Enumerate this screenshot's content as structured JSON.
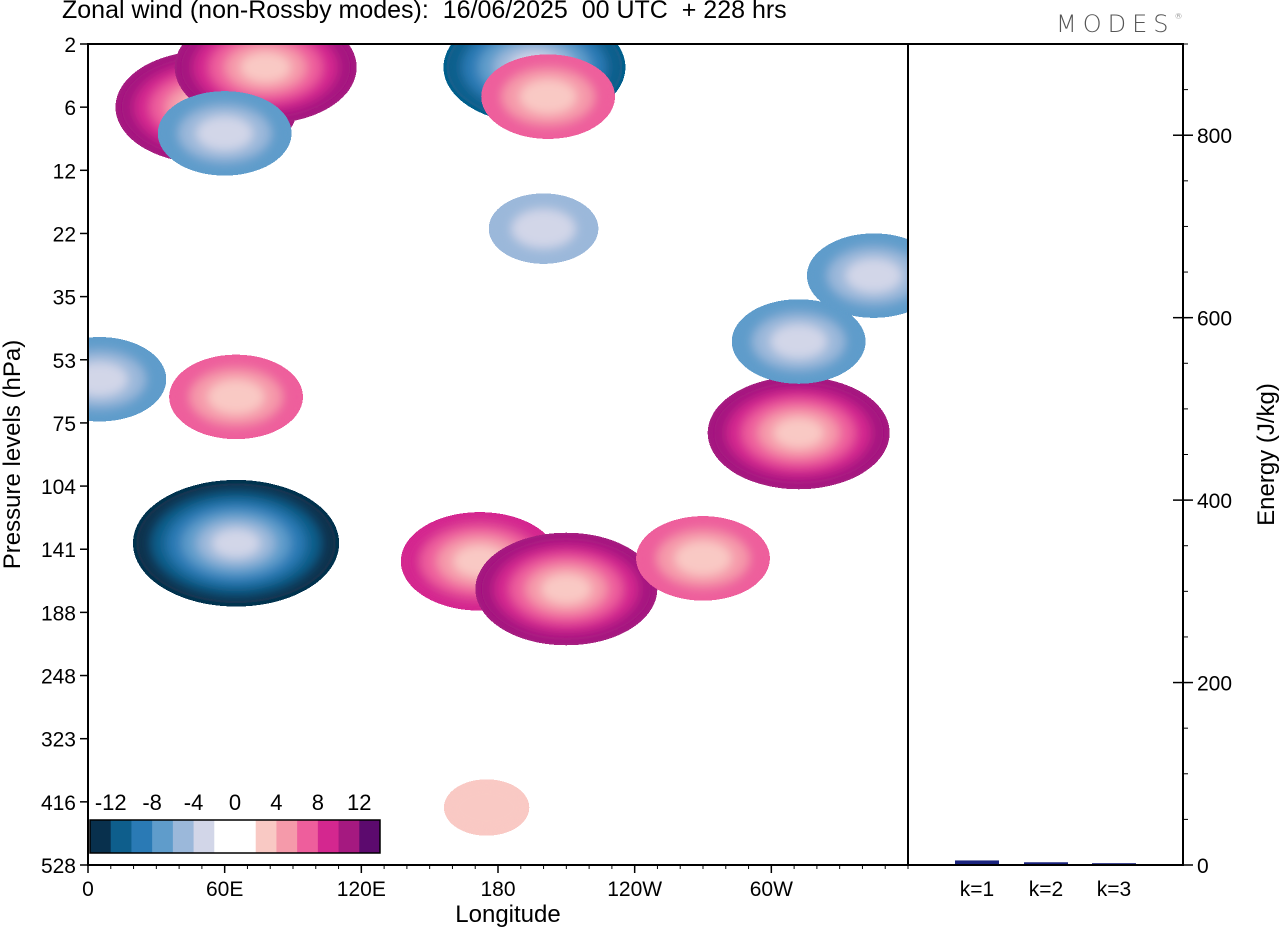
{
  "title": "Zonal wind (non-Rossby modes):  16/06/2025  00 UTC  + 228 hrs",
  "logo": "MODES",
  "colors": {
    "negative": [
      "#08304d",
      "#0e5e8c",
      "#2a7ab5",
      "#5f9ccb",
      "#9bb8da",
      "#d2d6e8"
    ],
    "positive": [
      "#f9c9c4",
      "#f59aaa",
      "#ee5e9c",
      "#d4278f",
      "#a51980",
      "#5c0a6e"
    ],
    "energy_bar": "#1a237e"
  },
  "chart_data": [
    {
      "type": "heatmap",
      "title": "Zonal wind (non-Rossby modes):  16/06/2025  00 UTC  + 228 hrs",
      "xlabel": "Longitude",
      "ylabel": "Pressure levels (hPa)",
      "x_ticks": [
        "0",
        "60E",
        "120E",
        "180",
        "120W",
        "60W"
      ],
      "x_tick_values": [
        0,
        60,
        120,
        180,
        240,
        300
      ],
      "xlim": [
        0,
        360
      ],
      "y_ticks": [
        "2",
        "6",
        "12",
        "22",
        "35",
        "53",
        "75",
        "104",
        "141",
        "188",
        "248",
        "323",
        "416",
        "528"
      ],
      "colorbar": {
        "labels": [
          "-12",
          "-8",
          "-4",
          "0",
          "4",
          "8",
          "12"
        ],
        "levels": [
          -12,
          -10,
          -8,
          -6,
          -4,
          -2,
          0,
          2,
          4,
          6,
          8,
          10,
          12
        ]
      },
      "features": [
        {
          "lon": 52,
          "level": 6,
          "value": 10
        },
        {
          "lon": 78,
          "level": 3,
          "value": 9
        },
        {
          "lon": 196,
          "level": 3,
          "value": -9
        },
        {
          "lon": 202,
          "level": 5,
          "value": 6
        },
        {
          "lon": 60,
          "level": 8,
          "value": -6
        },
        {
          "lon": 5,
          "level": 59,
          "value": -5
        },
        {
          "lon": 65,
          "level": 65,
          "value": 6
        },
        {
          "lon": 65,
          "level": 137,
          "value": -13
        },
        {
          "lon": 172,
          "level": 149,
          "value": 7
        },
        {
          "lon": 210,
          "level": 169,
          "value": 9
        },
        {
          "lon": 270,
          "level": 147,
          "value": 6
        },
        {
          "lon": 312,
          "level": 79,
          "value": 10
        },
        {
          "lon": 312,
          "level": 47,
          "value": -5
        },
        {
          "lon": 345,
          "level": 30,
          "value": -5
        },
        {
          "lon": 200,
          "level": 21,
          "value": -3
        },
        {
          "lon": 175,
          "level": 425,
          "value": 2
        }
      ]
    },
    {
      "type": "bar",
      "categories": [
        "k=1",
        "k=2",
        "k=3"
      ],
      "values": [
        5,
        3,
        2
      ],
      "ylabel": "Energy (J/kg)",
      "y_ticks": [
        "0",
        "200",
        "400",
        "600",
        "800"
      ],
      "ylim": [
        0,
        900
      ]
    }
  ]
}
